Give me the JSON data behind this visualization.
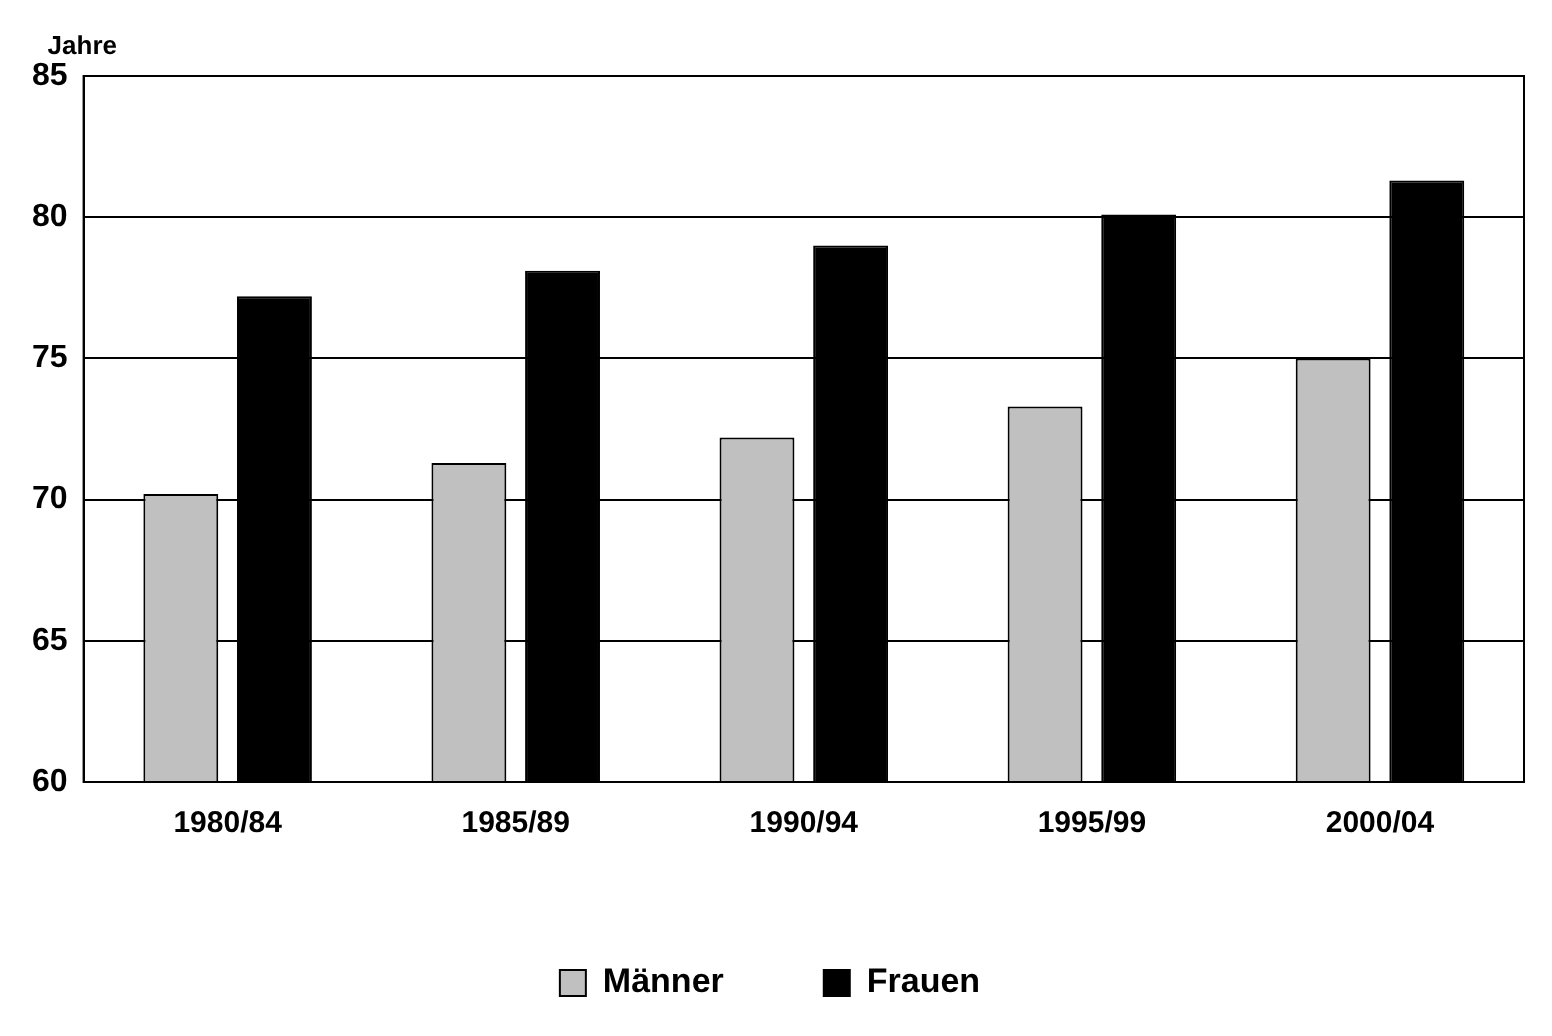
{
  "chart_data": {
    "type": "bar",
    "ylabel": "Jahre",
    "categories": [
      "1980/84",
      "1985/89",
      "1990/94",
      "1995/99",
      "2000/04"
    ],
    "series": [
      {
        "name": "Männer",
        "color": "#c0c0c0",
        "values": [
          70.2,
          71.3,
          72.2,
          73.3,
          75.0
        ]
      },
      {
        "name": "Frauen",
        "color": "#000000",
        "values": [
          77.2,
          78.1,
          79.0,
          80.1,
          81.3
        ]
      }
    ],
    "ylim": [
      60,
      85
    ],
    "yticks": [
      60,
      65,
      70,
      75,
      80,
      85
    ],
    "grid": "y",
    "legend": "bottom"
  }
}
